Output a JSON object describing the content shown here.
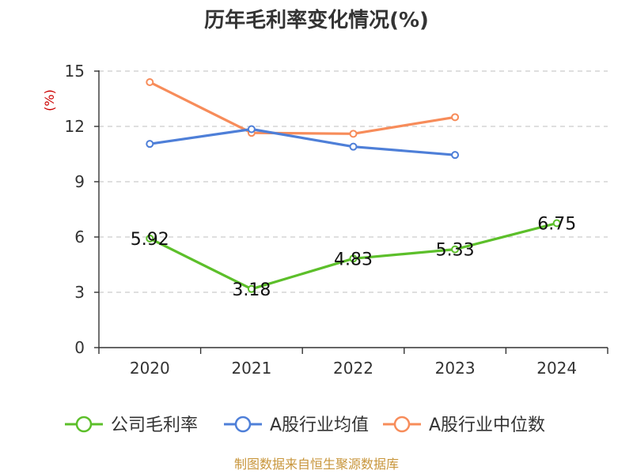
{
  "chart_data": {
    "type": "line",
    "title": "历年毛利率变化情况(%)",
    "ylabel": "(%)",
    "categories": [
      "2020",
      "2021",
      "2022",
      "2023",
      "2024"
    ],
    "ylim": [
      0,
      15
    ],
    "yticks": [
      "0",
      "3",
      "6",
      "9",
      "12",
      "15"
    ],
    "grid": true,
    "legend_position": "bottom",
    "series": [
      {
        "name": "公司毛利率",
        "color": "#5cbf2a",
        "values": [
          5.92,
          3.18,
          4.83,
          5.33,
          6.75
        ],
        "labels": [
          "5.92",
          "3.18",
          "4.83",
          "5.33",
          "6.75"
        ]
      },
      {
        "name": "A股行业均值",
        "color": "#4e7fd8",
        "values": [
          11.05,
          11.85,
          10.9,
          10.45,
          null
        ],
        "labels": []
      },
      {
        "name": "A股行业中位数",
        "color": "#f78c5a",
        "values": [
          14.4,
          11.65,
          11.6,
          12.5,
          null
        ],
        "labels": []
      }
    ]
  },
  "source": "制图数据来自恒生聚源数据库"
}
